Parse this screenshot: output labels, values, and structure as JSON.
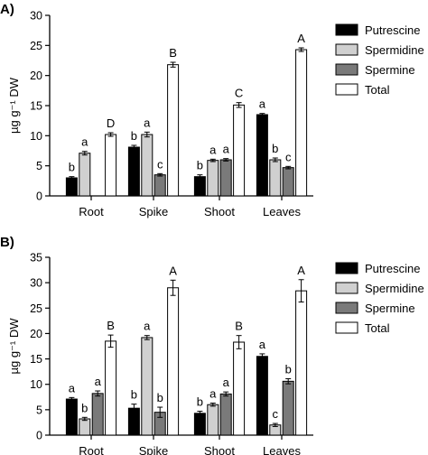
{
  "colors": {
    "Putrescine": "#000000",
    "Spermidine": "#d0d0d0",
    "Spermine": "#7a7a7a",
    "Total": "#ffffff",
    "stroke": "#000000"
  },
  "chart_data": [
    {
      "type": "bar",
      "panel_label": "A)",
      "categories": [
        "Root",
        "Spike",
        "Shoot",
        "Leaves"
      ],
      "ylabel": "µg g⁻¹ DW",
      "ylim": [
        0,
        30
      ],
      "yticks": [
        0,
        5,
        10,
        15,
        20,
        25,
        30
      ],
      "legend_position": "top-right",
      "series": [
        {
          "name": "Putrescine",
          "values": [
            3.0,
            8.1,
            3.2,
            13.5
          ],
          "errors": [
            0.2,
            0.3,
            0.3,
            0.2
          ],
          "sig": [
            "b",
            "b",
            "b",
            "a"
          ]
        },
        {
          "name": "Spermidine",
          "values": [
            7.1,
            10.2,
            5.9,
            6.0
          ],
          "errors": [
            0.3,
            0.4,
            0.2,
            0.3
          ],
          "sig": [
            "a",
            "a",
            "a",
            "b"
          ]
        },
        {
          "name": "Spermine",
          "values": [
            0,
            3.5,
            6.0,
            4.7
          ],
          "errors": [
            0,
            0.2,
            0.2,
            0.2
          ],
          "sig": [
            "",
            "c",
            "a",
            "c"
          ]
        },
        {
          "name": "Total",
          "values": [
            10.2,
            21.8,
            15.1,
            24.3
          ],
          "errors": [
            0.3,
            0.4,
            0.4,
            0.3
          ],
          "sig": [
            "D",
            "B",
            "C",
            "A"
          ]
        }
      ]
    },
    {
      "type": "bar",
      "panel_label": "B)",
      "categories": [
        "Root",
        "Spike",
        "Shoot",
        "Leaves"
      ],
      "ylabel": "µg g⁻¹ DW",
      "ylim": [
        0,
        35
      ],
      "yticks": [
        0,
        5,
        10,
        15,
        20,
        25,
        30,
        35
      ],
      "legend_position": "top-right",
      "series": [
        {
          "name": "Putrescine",
          "values": [
            7.1,
            5.3,
            4.3,
            15.5
          ],
          "errors": [
            0.3,
            0.8,
            0.4,
            0.5
          ],
          "sig": [
            "a",
            "b",
            "b",
            "a"
          ]
        },
        {
          "name": "Spermidine",
          "values": [
            3.2,
            19.2,
            6.0,
            2.0
          ],
          "errors": [
            0.3,
            0.4,
            0.3,
            0.3
          ],
          "sig": [
            "b",
            "a",
            "a",
            "c"
          ]
        },
        {
          "name": "Spermine",
          "values": [
            8.2,
            4.5,
            8.1,
            10.6
          ],
          "errors": [
            0.5,
            1.0,
            0.4,
            0.5
          ],
          "sig": [
            "a",
            "b",
            "a",
            "b"
          ]
        },
        {
          "name": "Total",
          "values": [
            18.5,
            29.0,
            18.3,
            28.4
          ],
          "errors": [
            1.2,
            1.5,
            1.3,
            2.2
          ],
          "sig": [
            "B",
            "A",
            "B",
            "A"
          ]
        }
      ]
    }
  ]
}
